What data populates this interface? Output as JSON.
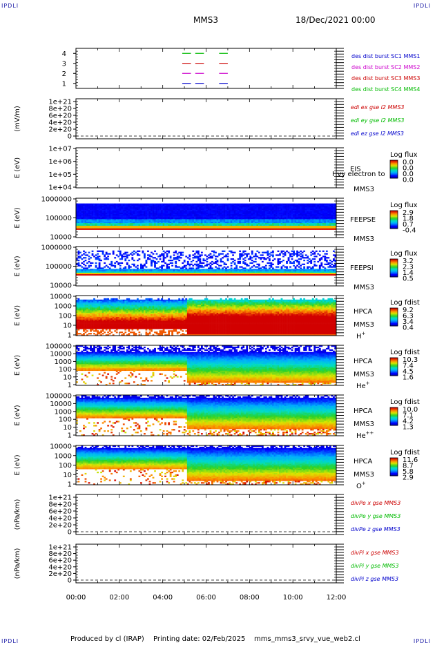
{
  "corners": {
    "tl": "IPDLI",
    "tr": "IPDLI",
    "bl": "IPDLI",
    "br": "IPDLI"
  },
  "header": {
    "spacecraft": "MMS3",
    "date": "18/Dec/2021 00:00"
  },
  "footer": {
    "produced": "Produced by cl (IRAP)",
    "printing": "Printing date: 02/Feb/2025",
    "file": "mms_mms3_srvy_vue_web2.cl"
  },
  "colors": {
    "red": "#cc0000",
    "green": "#00bb00",
    "blue": "#0000cc",
    "magenta": "#cc00cc",
    "navy": "#1a1aa6"
  },
  "chart_data": [
    {
      "type": "line",
      "panel": "burst",
      "x_ticks": [
        "00:00",
        "02:00",
        "04:00",
        "06:00",
        "08:00",
        "10:00",
        "12:00"
      ],
      "y_ticks": [
        "1",
        "2",
        "3",
        "4"
      ],
      "ylim": [
        0.5,
        4.5
      ],
      "segments_hours": [
        [
          4.9,
          5.3
        ],
        [
          5.5,
          5.9
        ],
        [
          6.6,
          7.0
        ]
      ],
      "series": [
        {
          "name": "des dist burst SC1 MMS1",
          "y": 1,
          "color": "#0000cc"
        },
        {
          "name": "des dist burst SC2 MMS2",
          "y": 2,
          "color": "#cc00cc"
        },
        {
          "name": "des dist burst SC3 MMS3",
          "y": 3,
          "color": "#cc0000"
        },
        {
          "name": "des dist burst SC4 MMS4",
          "y": 4,
          "color": "#00bb00"
        }
      ],
      "legend": [
        {
          "text": "des dist burst SC1 MMS1",
          "color": "#0000cc"
        },
        {
          "text": "des dist burst SC2 MMS2",
          "color": "#cc00cc"
        },
        {
          "text": "des dist burst SC3 MMS3",
          "color": "#cc0000"
        },
        {
          "text": "des dist burst SC4 MMS4",
          "color": "#00bb00"
        }
      ]
    },
    {
      "type": "line",
      "panel": "edi",
      "ylabel": "(mV/m)",
      "y_ticks": [
        "0",
        "2e+20",
        "4e+20",
        "6e+20",
        "8e+20",
        "1e+21"
      ],
      "zero_line": true,
      "legend": [
        {
          "text": "edi ex gse l2 MMS3",
          "color": "#cc0000"
        },
        {
          "text": "edi ey gse l2 MMS3",
          "color": "#00bb00"
        },
        {
          "text": "edi ez gse l2 MMS3",
          "color": "#0000cc"
        }
      ]
    },
    {
      "type": "heatmap",
      "panel": "eis",
      "ylabel": "E (eV)",
      "y_ticks": [
        "1e+04",
        "1e+05",
        "1e+06",
        "1e+07"
      ],
      "instrument": "EIS",
      "sc": "MMS3",
      "overlay_text": "Hvy electron to",
      "cbar_title": "Log flux",
      "cbar_ticks": [
        "0.0",
        "0.0",
        "0.0",
        "0.0"
      ],
      "cbar_scheme": "rainbow",
      "data": "empty"
    },
    {
      "type": "heatmap",
      "panel": "feepse",
      "ylabel": "E (eV)",
      "y_ticks": [
        "10000",
        "100000",
        "1000000"
      ],
      "instrument": "FEEPSE",
      "sc": "MMS3",
      "cbar_title": "Log flux",
      "cbar_ticks": [
        "2.9",
        "1.8",
        "0.7",
        "-0.4"
      ],
      "cbar_scheme": "rainbow"
    },
    {
      "type": "heatmap",
      "panel": "feepsi",
      "ylabel": "E (eV)",
      "y_ticks": [
        "10000",
        "100000",
        "1000000"
      ],
      "instrument": "FEEPSI",
      "sc": "MMS3",
      "cbar_title": "Log flux",
      "cbar_ticks": [
        "3.2",
        "2.3",
        "1.4",
        "0.5"
      ],
      "cbar_scheme": "rainbow"
    },
    {
      "type": "heatmap",
      "panel": "hpca-h",
      "ylabel": "E (eV)",
      "y_ticks": [
        "1",
        "10",
        "100",
        "1000",
        "10000"
      ],
      "instrument": "HPCA",
      "sc": "MMS3",
      "species": "H",
      "species_sup": "+",
      "cbar_title": "Log fdist",
      "cbar_ticks": [
        "9.2",
        "6.3",
        "3.4",
        "0.4"
      ],
      "cbar_scheme": "rainbow"
    },
    {
      "type": "heatmap",
      "panel": "hpca-he",
      "ylabel": "E (eV)",
      "y_ticks": [
        "1",
        "10",
        "100",
        "1000",
        "10000",
        "100000"
      ],
      "instrument": "HPCA",
      "sc": "MMS3",
      "species": "He",
      "species_sup": "+",
      "cbar_title": "Log fdist",
      "cbar_ticks": [
        "10.3",
        "7.4",
        "4.5",
        "1.6"
      ],
      "cbar_scheme": "rainbow"
    },
    {
      "type": "heatmap",
      "panel": "hpca-hepp",
      "ylabel": "E (eV)",
      "y_ticks": [
        "1",
        "10",
        "100",
        "1000",
        "10000",
        "100000"
      ],
      "instrument": "HPCA",
      "sc": "MMS3",
      "species": "He",
      "species_sup": "++",
      "cbar_title": "Log fdist",
      "cbar_ticks": [
        "10.0",
        "7.1",
        "4.2",
        "1.3"
      ],
      "cbar_scheme": "rainbow"
    },
    {
      "type": "heatmap",
      "panel": "hpca-o",
      "ylabel": "E (eV)",
      "y_ticks": [
        "1",
        "10",
        "100",
        "1000",
        "10000"
      ],
      "instrument": "HPCA",
      "sc": "MMS3",
      "species": "O",
      "species_sup": "+",
      "cbar_title": "Log fdist",
      "cbar_ticks": [
        "11.6",
        "8.7",
        "5.8",
        "2.9"
      ],
      "cbar_scheme": "rainbow"
    },
    {
      "type": "line",
      "panel": "divpe",
      "ylabel": "(nPa/km)",
      "y_ticks": [
        "0",
        "2e+20",
        "4e+20",
        "6e+20",
        "8e+20",
        "1e+21"
      ],
      "zero_line": true,
      "legend": [
        {
          "text": "divPe x gse MMS3",
          "color": "#cc0000"
        },
        {
          "text": "divPe y gse MMS3",
          "color": "#00bb00"
        },
        {
          "text": "divPe z gse MMS3",
          "color": "#0000cc"
        }
      ]
    },
    {
      "type": "line",
      "panel": "divpi",
      "ylabel": "(nPa/km)",
      "y_ticks": [
        "0",
        "2e+20",
        "4e+20",
        "6e+20",
        "8e+20",
        "1e+21"
      ],
      "zero_line": true,
      "x_ticks": [
        "00:00",
        "02:00",
        "04:00",
        "06:00",
        "08:00",
        "10:00",
        "12:00"
      ],
      "xlim_hours": [
        0,
        12
      ],
      "legend": [
        {
          "text": "divPi x gse MMS3",
          "color": "#cc0000"
        },
        {
          "text": "divPi y gse MMS3",
          "color": "#00bb00"
        },
        {
          "text": "divPi z gse MMS3",
          "color": "#0000cc"
        }
      ]
    }
  ]
}
